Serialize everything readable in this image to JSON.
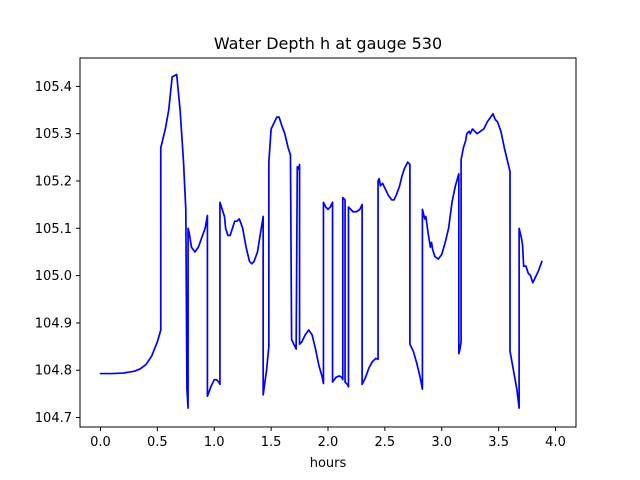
{
  "chart_data": {
    "type": "line",
    "title": "Water Depth h at gauge 530",
    "xlabel": "hours",
    "ylabel": "",
    "xlim": [
      -0.18,
      4.18
    ],
    "ylim": [
      104.68,
      105.46
    ],
    "x_ticks": [
      0.0,
      0.5,
      1.0,
      1.5,
      2.0,
      2.5,
      3.0,
      3.5,
      4.0
    ],
    "x_tick_labels": [
      "0.0",
      "0.5",
      "1.0",
      "1.5",
      "2.0",
      "2.5",
      "3.0",
      "3.5",
      "4.0"
    ],
    "y_ticks": [
      104.7,
      104.8,
      104.9,
      105.0,
      105.1,
      105.2,
      105.3,
      105.4
    ],
    "y_tick_labels": [
      "104.7",
      "104.8",
      "104.9",
      "105.0",
      "105.1",
      "105.2",
      "105.3",
      "105.4"
    ],
    "grid": false,
    "series": [
      {
        "color": "#0000ff",
        "points": [
          [
            0.0,
            104.793
          ],
          [
            0.1,
            104.793
          ],
          [
            0.2,
            104.794
          ],
          [
            0.3,
            104.798
          ],
          [
            0.35,
            104.803
          ],
          [
            0.4,
            104.812
          ],
          [
            0.45,
            104.83
          ],
          [
            0.5,
            104.86
          ],
          [
            0.53,
            104.885
          ],
          [
            0.53,
            105.27
          ],
          [
            0.57,
            105.31
          ],
          [
            0.6,
            105.35
          ],
          [
            0.63,
            105.42
          ],
          [
            0.67,
            105.425
          ],
          [
            0.7,
            105.35
          ],
          [
            0.73,
            105.24
          ],
          [
            0.75,
            105.14
          ],
          [
            0.76,
            104.76
          ],
          [
            0.77,
            104.72
          ],
          [
            0.77,
            105.1
          ],
          [
            0.78,
            105.09
          ],
          [
            0.8,
            105.06
          ],
          [
            0.83,
            105.05
          ],
          [
            0.86,
            105.06
          ],
          [
            0.89,
            105.08
          ],
          [
            0.92,
            105.1
          ],
          [
            0.94,
            105.127
          ],
          [
            0.94,
            104.745
          ],
          [
            0.97,
            104.765
          ],
          [
            1.0,
            104.78
          ],
          [
            1.02,
            104.78
          ],
          [
            1.04,
            104.775
          ],
          [
            1.05,
            104.77
          ],
          [
            1.05,
            105.155
          ],
          [
            1.07,
            105.14
          ],
          [
            1.09,
            105.125
          ],
          [
            1.1,
            105.1
          ],
          [
            1.12,
            105.085
          ],
          [
            1.14,
            105.085
          ],
          [
            1.16,
            105.1
          ],
          [
            1.18,
            105.115
          ],
          [
            1.2,
            105.115
          ],
          [
            1.22,
            105.12
          ],
          [
            1.25,
            105.1
          ],
          [
            1.28,
            105.06
          ],
          [
            1.31,
            105.03
          ],
          [
            1.33,
            105.025
          ],
          [
            1.35,
            105.03
          ],
          [
            1.38,
            105.05
          ],
          [
            1.4,
            105.08
          ],
          [
            1.42,
            105.11
          ],
          [
            1.43,
            105.125
          ],
          [
            1.43,
            104.748
          ],
          [
            1.46,
            104.8
          ],
          [
            1.48,
            104.85
          ],
          [
            1.48,
            105.24
          ],
          [
            1.5,
            105.31
          ],
          [
            1.53,
            105.325
          ],
          [
            1.55,
            105.335
          ],
          [
            1.57,
            105.335
          ],
          [
            1.59,
            105.32
          ],
          [
            1.62,
            105.3
          ],
          [
            1.65,
            105.27
          ],
          [
            1.67,
            105.255
          ],
          [
            1.68,
            104.865
          ],
          [
            1.7,
            104.855
          ],
          [
            1.72,
            104.845
          ],
          [
            1.73,
            105.23
          ],
          [
            1.74,
            105.225
          ],
          [
            1.75,
            105.235
          ],
          [
            1.75,
            104.855
          ],
          [
            1.77,
            104.86
          ],
          [
            1.8,
            104.875
          ],
          [
            1.83,
            104.885
          ],
          [
            1.86,
            104.875
          ],
          [
            1.89,
            104.845
          ],
          [
            1.92,
            104.81
          ],
          [
            1.95,
            104.785
          ],
          [
            1.96,
            104.772
          ],
          [
            1.96,
            105.155
          ],
          [
            1.98,
            105.145
          ],
          [
            2.0,
            105.14
          ],
          [
            2.02,
            105.145
          ],
          [
            2.04,
            105.155
          ],
          [
            2.04,
            104.775
          ],
          [
            2.07,
            104.785
          ],
          [
            2.1,
            104.788
          ],
          [
            2.12,
            104.785
          ],
          [
            2.13,
            104.78
          ],
          [
            2.13,
            105.165
          ],
          [
            2.15,
            105.16
          ],
          [
            2.15,
            104.775
          ],
          [
            2.17,
            104.77
          ],
          [
            2.18,
            104.765
          ],
          [
            2.18,
            105.145
          ],
          [
            2.2,
            105.14
          ],
          [
            2.22,
            105.135
          ],
          [
            2.25,
            105.135
          ],
          [
            2.28,
            105.14
          ],
          [
            2.3,
            105.15
          ],
          [
            2.3,
            104.77
          ],
          [
            2.33,
            104.785
          ],
          [
            2.36,
            104.805
          ],
          [
            2.39,
            104.818
          ],
          [
            2.42,
            104.825
          ],
          [
            2.44,
            104.823
          ],
          [
            2.44,
            105.2
          ],
          [
            2.45,
            105.205
          ],
          [
            2.46,
            105.19
          ],
          [
            2.48,
            105.195
          ],
          [
            2.5,
            105.185
          ],
          [
            2.53,
            105.17
          ],
          [
            2.56,
            105.16
          ],
          [
            2.58,
            105.16
          ],
          [
            2.6,
            105.17
          ],
          [
            2.63,
            105.19
          ],
          [
            2.65,
            105.21
          ],
          [
            2.67,
            105.225
          ],
          [
            2.69,
            105.235
          ],
          [
            2.7,
            105.24
          ],
          [
            2.72,
            105.235
          ],
          [
            2.72,
            104.855
          ],
          [
            2.75,
            104.84
          ],
          [
            2.78,
            104.815
          ],
          [
            2.81,
            104.785
          ],
          [
            2.83,
            104.76
          ],
          [
            2.83,
            105.14
          ],
          [
            2.85,
            105.12
          ],
          [
            2.86,
            105.125
          ],
          [
            2.88,
            105.09
          ],
          [
            2.89,
            105.075
          ],
          [
            2.9,
            105.06
          ],
          [
            2.91,
            105.07
          ],
          [
            2.92,
            105.055
          ],
          [
            2.94,
            105.04
          ],
          [
            2.97,
            105.035
          ],
          [
            3.0,
            105.045
          ],
          [
            3.03,
            105.07
          ],
          [
            3.06,
            105.1
          ],
          [
            3.09,
            105.155
          ],
          [
            3.12,
            105.19
          ],
          [
            3.15,
            105.215
          ],
          [
            3.15,
            104.835
          ],
          [
            3.16,
            104.845
          ],
          [
            3.17,
            104.86
          ],
          [
            3.17,
            105.245
          ],
          [
            3.19,
            105.27
          ],
          [
            3.21,
            105.285
          ],
          [
            3.22,
            105.3
          ],
          [
            3.24,
            105.305
          ],
          [
            3.25,
            105.3
          ],
          [
            3.27,
            105.31
          ],
          [
            3.29,
            105.305
          ],
          [
            3.31,
            105.3
          ],
          [
            3.34,
            105.305
          ],
          [
            3.37,
            105.31
          ],
          [
            3.4,
            105.325
          ],
          [
            3.43,
            105.335
          ],
          [
            3.45,
            105.342
          ],
          [
            3.47,
            105.33
          ],
          [
            3.49,
            105.325
          ],
          [
            3.52,
            105.305
          ],
          [
            3.55,
            105.27
          ],
          [
            3.58,
            105.24
          ],
          [
            3.6,
            105.22
          ],
          [
            3.6,
            104.84
          ],
          [
            3.63,
            104.8
          ],
          [
            3.66,
            104.76
          ],
          [
            3.68,
            104.72
          ],
          [
            3.68,
            105.1
          ],
          [
            3.7,
            105.08
          ],
          [
            3.71,
            105.065
          ],
          [
            3.72,
            105.02
          ],
          [
            3.74,
            105.02
          ],
          [
            3.76,
            105.005
          ],
          [
            3.78,
            105.0
          ],
          [
            3.8,
            104.985
          ],
          [
            3.82,
            104.995
          ],
          [
            3.85,
            105.01
          ],
          [
            3.88,
            105.03
          ]
        ]
      }
    ]
  }
}
